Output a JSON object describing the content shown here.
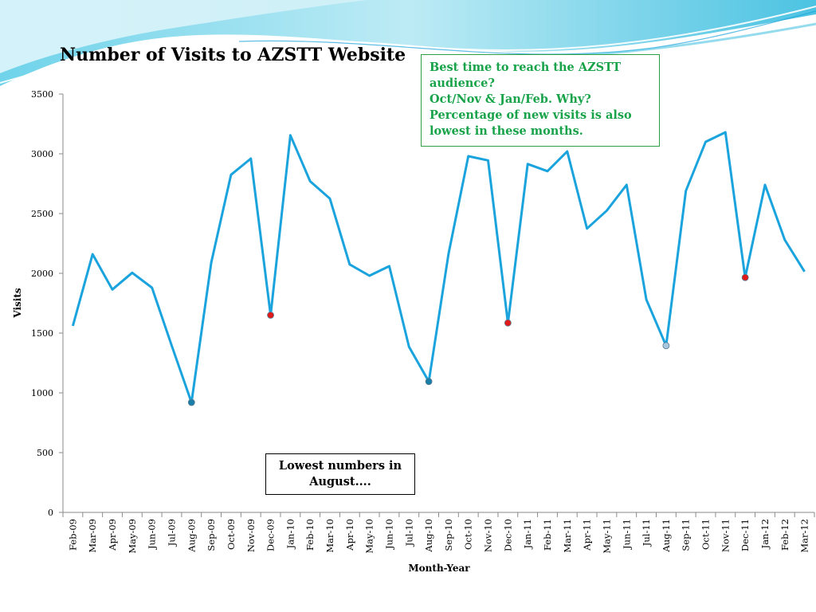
{
  "title": "Number of Visits to AZSTT Website",
  "annotations": {
    "green_note": [
      "Best time to reach the AZSTT",
      "audience?",
      "Oct/Nov & Jan/Feb. Why?",
      "Percentage of new visits is also",
      "lowest in these months."
    ],
    "black_note": "Lowest numbers in August...."
  },
  "colors": {
    "line": "#1aa3dc",
    "marker_red": "#e01a1a",
    "marker_teal": "#1a7fa8",
    "marker_light": "#a9c8e0",
    "note_green": "#18a34a"
  },
  "chart_data": {
    "type": "line",
    "title": "Number of Visits to AZSTT Website",
    "xlabel": "Month-Year",
    "ylabel": "Visits",
    "ylim": [
      0,
      3500
    ],
    "yticks": [
      0,
      500,
      1000,
      1500,
      2000,
      2500,
      3000,
      3500
    ],
    "grid": false,
    "categories": [
      "Feb-09",
      "Mar-09",
      "Apr-09",
      "May-09",
      "Jun-09",
      "Jul-09",
      "Aug-09",
      "Sep-09",
      "Oct-09",
      "Nov-09",
      "Dec-09",
      "Jan-10",
      "Feb-10",
      "Mar-10",
      "Apr-10",
      "May-10",
      "Jun-10",
      "Jul-10",
      "Aug-10",
      "Sep-10",
      "Oct-10",
      "Nov-10",
      "Dec-10",
      "Jan-11",
      "Feb-11",
      "Mar-11",
      "Apr-11",
      "May-11",
      "Jun-11",
      "Jul-11",
      "Aug-11",
      "Sep-11",
      "Oct-11",
      "Nov-11",
      "Dec-11",
      "Jan-12",
      "Feb-12",
      "Mar-12"
    ],
    "series": [
      {
        "values": [
          1560,
          2160,
          1865,
          2005,
          1880,
          1395,
          920,
          2090,
          2825,
          2960,
          1650,
          3155,
          2770,
          2625,
          2075,
          1980,
          2060,
          1385,
          1095,
          2165,
          2980,
          2945,
          1585,
          2915,
          2855,
          3020,
          2375,
          2525,
          2740,
          1780,
          1395,
          2690,
          3100,
          3180,
          1965,
          2740,
          2280,
          2015
        ],
        "highlighted_points": [
          {
            "category": "Aug-09",
            "color": "teal"
          },
          {
            "category": "Dec-09",
            "color": "red"
          },
          {
            "category": "Aug-10",
            "color": "teal"
          },
          {
            "category": "Dec-10",
            "color": "red"
          },
          {
            "category": "Aug-11",
            "color": "light"
          },
          {
            "category": "Dec-11",
            "color": "red"
          }
        ]
      }
    ]
  }
}
